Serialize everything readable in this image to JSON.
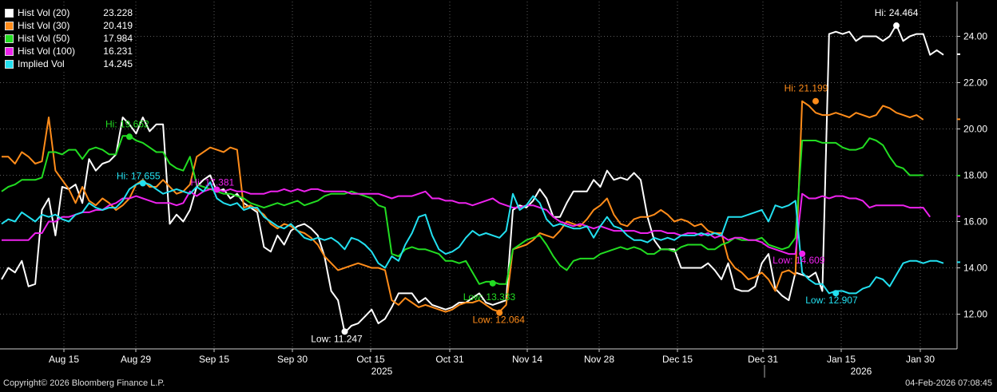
{
  "chart_data": {
    "type": "line",
    "ylim": [
      10.5,
      25.5
    ],
    "y_ticks": [
      "12.00",
      "14.00",
      "16.00",
      "18.00",
      "20.00",
      "22.00",
      "24.00"
    ],
    "grid": true,
    "legend_position": "top-left",
    "x_tick_labels": [
      "Aug 15",
      "Aug 29",
      "Sep 15",
      "Sep 30",
      "Oct 15",
      "Oct 31",
      "Nov 14",
      "Nov 28",
      "Dec 15",
      "Dec 31",
      "Jan 15",
      "Jan 30"
    ],
    "x_year_labels": [
      "2025",
      "2026"
    ],
    "series": [
      {
        "name": "Hist Vol (20)",
        "last": "23.228",
        "color": "#ffffff",
        "values": [
          13.5,
          14,
          13.8,
          14.3,
          13.2,
          13.3,
          16.5,
          17,
          15.4,
          17.5,
          17.4,
          17.6,
          16.8,
          18.7,
          18.2,
          18.5,
          18.6,
          18.9,
          20.5,
          20.2,
          19.8,
          20.5,
          19.9,
          20.2,
          20.2,
          15.9,
          16.3,
          16,
          16.5,
          17.5,
          17.8,
          18,
          17.3,
          17.4,
          17,
          17.2,
          16.8,
          16.6,
          16.4,
          14.9,
          14.7,
          15.4,
          15,
          15.6,
          15.8,
          15.9,
          15.7,
          15.4,
          14.5,
          13,
          12.6,
          11.2,
          11.5,
          11.6,
          11.9,
          12.2,
          11.6,
          11.8,
          12.3,
          12.9,
          12.9,
          12.9,
          12.5,
          12.7,
          12.4,
          12.3,
          12.2,
          12.3,
          12.5,
          12.5,
          12.7,
          12.9,
          12.5,
          12.4,
          12.5,
          12.6,
          16.5,
          16.7,
          16.6,
          16.9,
          17.4,
          17,
          16.2,
          16.2,
          16.8,
          17.3,
          17.3,
          17.3,
          17.8,
          17.5,
          18.2,
          17.8,
          17.9,
          17.8,
          18.1,
          17.8,
          16.2,
          15.2,
          14.8,
          14.8,
          14.8,
          14,
          14,
          14,
          14,
          14.2,
          13.9,
          13.5,
          14.2,
          13.1,
          13,
          13,
          13.2,
          14.2,
          14.6,
          13.1,
          12.8,
          12.6,
          13.8,
          13.7,
          13.6,
          13.8,
          13,
          24.1,
          24.2,
          24.1,
          24.2,
          23.8,
          24,
          24,
          24,
          23.8,
          24,
          24.5,
          23.8,
          24,
          24.1,
          24.1,
          23.2,
          23.4,
          23.2
        ]
      },
      {
        "name": "Hist Vol (30)",
        "last": "20.419",
        "color": "#ff8c1a",
        "values": [
          18.8,
          18.8,
          18.5,
          19,
          18.8,
          18.5,
          18.6,
          20.5,
          18.2,
          17.8,
          17.4,
          16.8,
          17.5,
          16.9,
          16.7,
          17,
          16.8,
          16.5,
          16.7,
          17,
          17.6,
          17.8,
          17.5,
          17.5,
          17.8,
          17.5,
          17.2,
          17.3,
          17.6,
          18.8,
          19,
          19.2,
          19.1,
          19,
          19.2,
          19.1,
          16.6,
          16.7,
          16.5,
          16.3,
          15.9,
          15.7,
          15.9,
          15.8,
          15.6,
          15.5,
          15.3,
          15,
          14.5,
          14.2,
          13.9,
          14,
          14.1,
          14.2,
          14.1,
          14,
          14,
          13.9,
          12.6,
          12.4,
          12.7,
          12.5,
          12.3,
          12.4,
          12.3,
          12.2,
          12.1,
          12.2,
          12.4,
          12.5,
          12.5,
          12.6,
          12.4,
          12.2,
          12.1,
          12.4,
          14.8,
          14.9,
          15,
          15.2,
          15.5,
          15.4,
          15.3,
          15.6,
          16,
          15.9,
          15.8,
          16.1,
          16.5,
          16.7,
          17,
          16.3,
          15.9,
          15.8,
          16.1,
          16.2,
          16.2,
          16.3,
          16.5,
          16.3,
          16,
          16.1,
          16,
          15.8,
          15.9,
          15.6,
          15.5,
          15.5,
          14.4,
          14,
          13.8,
          13.5,
          13.6,
          13.8,
          13.5,
          13,
          13.8,
          13.9,
          13.7,
          21.2,
          21,
          20.7,
          20.6,
          20.6,
          20.7,
          20.6,
          20.5,
          20.7,
          20.6,
          20.5,
          20.6,
          21,
          20.9,
          20.7,
          20.6,
          20.5,
          20.6,
          20.4
        ]
      },
      {
        "name": "Hist Vol (50)",
        "last": "17.984",
        "color": "#22dd22",
        "values": [
          17.3,
          17.5,
          17.6,
          17.8,
          17.8,
          17.8,
          17.9,
          19,
          19,
          18.9,
          19.1,
          19.1,
          18.7,
          19.1,
          19.2,
          19.1,
          18.9,
          18.9,
          19.7,
          19.7,
          19.5,
          19.4,
          19.2,
          19,
          19,
          18.5,
          18.3,
          18.2,
          18.8,
          17.6,
          17.5,
          17.4,
          17.3,
          17.2,
          17.2,
          17.1,
          17,
          16.8,
          16.7,
          16.6,
          16.7,
          16.8,
          16.7,
          16.8,
          16.9,
          16.7,
          16.8,
          16.9,
          17.1,
          17.2,
          17.2,
          17.2,
          17.3,
          17.2,
          17.1,
          17,
          16.7,
          16.6,
          14.6,
          14.5,
          14.8,
          14.9,
          14.8,
          14.8,
          14.7,
          14.6,
          14.3,
          14.3,
          14.2,
          14.3,
          13.8,
          13.3,
          13.4,
          13.4,
          13.3,
          13.3,
          14.8,
          15,
          15.2,
          15.3,
          15.4,
          15,
          14.5,
          14.1,
          13.9,
          14.3,
          14.4,
          14.4,
          14.4,
          14.6,
          14.7,
          14.8,
          14.9,
          14.8,
          14.9,
          14.8,
          14.6,
          14.6,
          14.8,
          14.8,
          14.7,
          14.9,
          15,
          15,
          15,
          14.8,
          14.8,
          15,
          15.1,
          15.3,
          15.2,
          15.2,
          15.2,
          15.3,
          15,
          14.9,
          14.8,
          14.9,
          15.3,
          19.5,
          19.5,
          19.5,
          19.4,
          19.4,
          19.4,
          19.2,
          19.1,
          19.1,
          19.2,
          19.6,
          19.5,
          19.3,
          18.8,
          18.4,
          18.3,
          18,
          18,
          18
        ]
      },
      {
        "name": "Hist Vol (100)",
        "last": "16.231",
        "color": "#ee22ee",
        "values": [
          15.2,
          15.2,
          15.2,
          15.2,
          15.2,
          15.5,
          15.5,
          16,
          16,
          16.2,
          16.2,
          16.3,
          16.4,
          16.4,
          16.5,
          16.5,
          16.7,
          16.8,
          17,
          17,
          17.1,
          17,
          16.9,
          16.8,
          16.8,
          16.8,
          16.7,
          16.8,
          17.3,
          17.1,
          17.3,
          17.4,
          17.4,
          17.3,
          17.4,
          17.3,
          17.3,
          17.2,
          17.2,
          17.2,
          17.3,
          17.3,
          17.4,
          17.3,
          17.4,
          17.3,
          17.4,
          17.4,
          17.3,
          17.3,
          17.3,
          17.3,
          17.2,
          17.2,
          17.2,
          17.2,
          17.2,
          17.1,
          17,
          17.1,
          17.1,
          17.1,
          17.2,
          17.3,
          17,
          17,
          16.9,
          16.9,
          16.8,
          16.8,
          16.7,
          16.8,
          16.9,
          17,
          16.8,
          16.7,
          16.6,
          16.6,
          16.7,
          16.7,
          16.6,
          16.5,
          16.2,
          16,
          15.9,
          15.8,
          15.9,
          15.8,
          15.7,
          15.8,
          15.7,
          15.6,
          15.6,
          15.6,
          15.6,
          15.5,
          15.5,
          15.6,
          15.6,
          15.5,
          15.5,
          15.4,
          15.5,
          15.5,
          15.4,
          15.5,
          15.3,
          15.4,
          15.2,
          15.3,
          15.3,
          15.2,
          15.2,
          15.1,
          14.9,
          14.8,
          14.7,
          14.6,
          14.6,
          17.2,
          17,
          17,
          17.1,
          17,
          17.1,
          17.1,
          17,
          17,
          16.9,
          16.6,
          16.7,
          16.7,
          16.7,
          16.7,
          16.7,
          16.6,
          16.6,
          16.6,
          16.2
        ]
      },
      {
        "name": "Implied Vol",
        "last": "14.245",
        "color": "#22e0f0",
        "values": [
          15.9,
          16.1,
          16,
          16.4,
          16.2,
          16,
          16.3,
          16.2,
          16.3,
          16.1,
          16,
          16.3,
          16.4,
          16.8,
          16.6,
          16.5,
          16.6,
          16.6,
          16.9,
          17.4,
          17.6,
          17.7,
          17.6,
          17.4,
          17.2,
          17.3,
          17.4,
          17.3,
          17.2,
          17.5,
          17.3,
          17.7,
          17,
          16.8,
          16.7,
          16.8,
          16.5,
          16.6,
          16.6,
          16.2,
          16,
          15.8,
          15.7,
          15.9,
          15.6,
          15.3,
          15.2,
          15.3,
          15.2,
          15.3,
          15.1,
          14.8,
          15.3,
          15.2,
          15,
          14.7,
          14.2,
          14,
          14.5,
          14.3,
          15,
          15.5,
          16.2,
          16.3,
          15.4,
          14.8,
          14.6,
          14.7,
          14.9,
          15.3,
          15.6,
          15.4,
          15.5,
          15.4,
          15.3,
          15.6,
          17.2,
          16.5,
          16.7,
          17.1,
          16.8,
          16.1,
          15.8,
          15.9,
          15.8,
          15.7,
          15.7,
          15.8,
          15.3,
          15.8,
          16.2,
          15.8,
          15.7,
          15.4,
          15.2,
          15.2,
          15.1,
          15.3,
          15.2,
          15.3,
          15.2,
          15.4,
          15.4,
          15.4,
          15.5,
          15.4,
          15.5,
          15.4,
          16.2,
          16.2,
          16.2,
          16.3,
          16.4,
          16.5,
          16,
          16.7,
          16.6,
          16.7,
          16.9,
          13.8,
          13.5,
          13.3,
          13.3,
          12.9,
          13,
          13,
          12.9,
          12.9,
          13.1,
          13.2,
          13.6,
          13.5,
          13.2,
          13.7,
          14.2,
          14.3,
          14.3,
          14.2,
          14.3,
          14.3,
          14.2
        ]
      }
    ],
    "annotations": [
      {
        "text": "Hi: 24.464",
        "value": 24.464,
        "series": 0,
        "index": 133
      },
      {
        "text": "Low: 11.247",
        "value": 11.247,
        "series": 0,
        "index": 51
      },
      {
        "text": "Hi: 21.199",
        "value": 21.199,
        "series": 1,
        "index": 121
      },
      {
        "text": "Low: 12.064",
        "value": 12.064,
        "series": 1,
        "index": 74
      },
      {
        "text": "Hi: 19.662",
        "value": 19.662,
        "series": 2,
        "index": 19
      },
      {
        "text": "Low: 13.333",
        "value": 13.333,
        "series": 2,
        "index": 73
      },
      {
        "text": "Hi: 17.381",
        "value": 17.381,
        "series": 3,
        "index": 32
      },
      {
        "text": "Low: 14.609",
        "value": 14.609,
        "series": 3,
        "index": 119
      },
      {
        "text": "Hi: 17.655",
        "value": 17.655,
        "series": 4,
        "index": 21
      },
      {
        "text": "Low: 12.907",
        "value": 12.907,
        "series": 4,
        "index": 124
      }
    ]
  },
  "footer": {
    "copyright": "Copyright© 2026 Bloomberg Finance L.P.",
    "timestamp": "04-Feb-2026 07:08:45"
  }
}
